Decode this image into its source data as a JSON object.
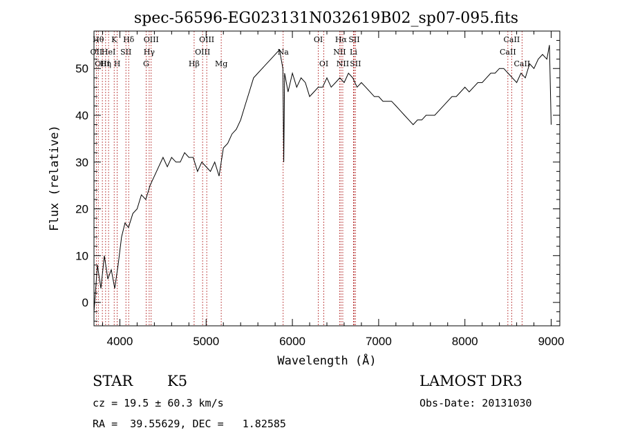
{
  "chart_data": {
    "type": "line",
    "title": "spec-56596-EG023131N032619B02_sp07-095.fits",
    "xlabel": "Wavelength (Å)",
    "ylabel": "Flux (relative)",
    "xlim": [
      3700,
      9100
    ],
    "ylim": [
      -5,
      58
    ],
    "xticks": [
      4000,
      5000,
      6000,
      7000,
      8000,
      9000
    ],
    "yticks": [
      0,
      10,
      20,
      30,
      40,
      50
    ],
    "grid": false,
    "line_color": "#000000",
    "marker_color": "#b22222",
    "series": [
      {
        "x": [
          3700,
          3740,
          3780,
          3820,
          3860,
          3900,
          3940,
          3980,
          4020,
          4060,
          4100,
          4150,
          4200,
          4250,
          4300,
          4350,
          4400,
          4450,
          4500,
          4550,
          4600,
          4650,
          4700,
          4750,
          4800,
          4850,
          4900,
          4950,
          5000,
          5050,
          5100,
          5150,
          5200,
          5250,
          5300,
          5350,
          5400,
          5450,
          5500,
          5550,
          5600,
          5650,
          5700,
          5750,
          5800,
          5850,
          5890,
          5900,
          5910,
          5950,
          6000,
          6050,
          6100,
          6150,
          6200,
          6250,
          6300,
          6350,
          6400,
          6450,
          6500,
          6550,
          6600,
          6650,
          6700,
          6750,
          6800,
          6850,
          6900,
          6950,
          7000,
          7050,
          7100,
          7150,
          7200,
          7250,
          7300,
          7350,
          7400,
          7450,
          7500,
          7550,
          7600,
          7650,
          7700,
          7750,
          7800,
          7850,
          7900,
          7950,
          8000,
          8050,
          8100,
          8150,
          8200,
          8250,
          8300,
          8350,
          8400,
          8450,
          8500,
          8550,
          8600,
          8650,
          8700,
          8750,
          8800,
          8850,
          8900,
          8950,
          8980,
          9000
        ],
        "y": [
          -2,
          8,
          3,
          10,
          5,
          7,
          3,
          8,
          14,
          17,
          16,
          19,
          20,
          23,
          22,
          25,
          27,
          29,
          31,
          29,
          31,
          30,
          30,
          32,
          31,
          31,
          28,
          30,
          29,
          28,
          30,
          27,
          33,
          34,
          36,
          37,
          39,
          42,
          45,
          48,
          49,
          50,
          51,
          52,
          53,
          54,
          50,
          30,
          49,
          45,
          49,
          46,
          48,
          47,
          44,
          45,
          46,
          46,
          48,
          46,
          47,
          48,
          47,
          49,
          48,
          46,
          47,
          46,
          45,
          44,
          44,
          43,
          43,
          43,
          42,
          41,
          40,
          39,
          38,
          39,
          39,
          40,
          40,
          40,
          41,
          42,
          43,
          44,
          44,
          45,
          46,
          45,
          46,
          47,
          47,
          48,
          49,
          49,
          50,
          50,
          49,
          48,
          47,
          49,
          48,
          51,
          50,
          52,
          53,
          52,
          55,
          38
        ]
      }
    ],
    "line_markers": [
      {
        "wave": 3727,
        "label": "OII",
        "row": 1
      },
      {
        "wave": 3750,
        "label": "Hθ",
        "row": 0
      },
      {
        "wave": 3797,
        "label": "OIII",
        "row": 2
      },
      {
        "wave": 3835,
        "label": "Hη",
        "row": 2
      },
      {
        "wave": 3869,
        "label": "HeI",
        "row": 1
      },
      {
        "wave": 3934,
        "label": "K",
        "row": 0
      },
      {
        "wave": 3969,
        "label": "H",
        "row": 2
      },
      {
        "wave": 4070,
        "label": "SII",
        "row": 1
      },
      {
        "wave": 4102,
        "label": "Hδ",
        "row": 0
      },
      {
        "wave": 4304,
        "label": "G",
        "row": 2
      },
      {
        "wave": 4340,
        "label": "Hγ",
        "row": 1
      },
      {
        "wave": 4363,
        "label": "OIII",
        "row": 0
      },
      {
        "wave": 4861,
        "label": "Hβ",
        "row": 2
      },
      {
        "wave": 4959,
        "label": "OIII",
        "row": 1
      },
      {
        "wave": 5007,
        "label": "OIII",
        "row": 0
      },
      {
        "wave": 5175,
        "label": "Mg",
        "row": 2
      },
      {
        "wave": 5893,
        "label": "Na",
        "row": 1
      },
      {
        "wave": 6300,
        "label": "OI",
        "row": 0
      },
      {
        "wave": 6364,
        "label": "OI",
        "row": 2
      },
      {
        "wave": 6548,
        "label": "NII",
        "row": 1
      },
      {
        "wave": 6563,
        "label": "Hα",
        "row": 0
      },
      {
        "wave": 6584,
        "label": "NII",
        "row": 2
      },
      {
        "wave": 6708,
        "label": "Li",
        "row": 1
      },
      {
        "wave": 6716,
        "label": "SII",
        "row": 0
      },
      {
        "wave": 6731,
        "label": "SII",
        "row": 2
      },
      {
        "wave": 8498,
        "label": "CaII",
        "row": 1
      },
      {
        "wave": 8542,
        "label": "CaII",
        "row": 0
      },
      {
        "wave": 8662,
        "label": "CaII",
        "row": 2
      }
    ]
  },
  "info": {
    "object_class": "STAR",
    "subclass": "K5",
    "survey": "LAMOST DR3",
    "redshift_line": "cz = 19.5 ± 60.3 km/s",
    "obs_date": "Obs-Date: 20131030",
    "coords": "RA =  39.55629, DEC =   1.82585"
  }
}
